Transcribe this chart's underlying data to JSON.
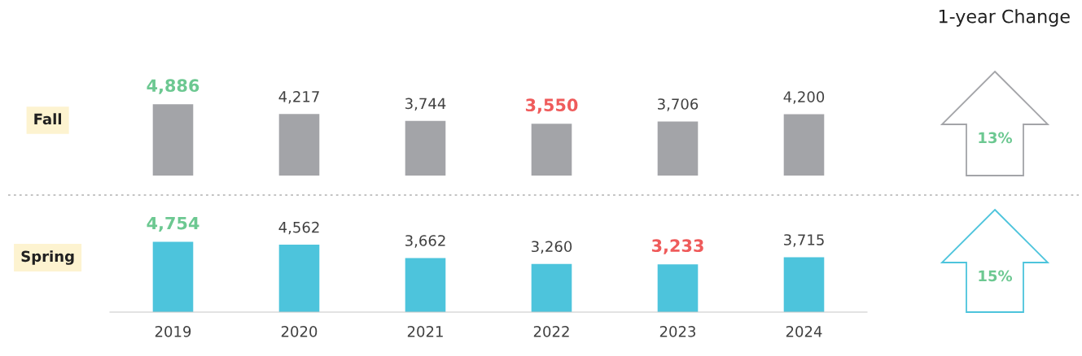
{
  "chart_data": [
    {
      "type": "bar",
      "ylabel": "Fall",
      "categories": [
        "2019",
        "2020",
        "2021",
        "2022",
        "2023",
        "2024"
      ],
      "series": [
        {
          "color": "#a3a4a8",
          "values": [
            4886,
            4217,
            3744,
            3550,
            3706,
            4200
          ],
          "value_labels": [
            "4,886",
            "4,217",
            "3,744",
            "3,550",
            "3,706",
            "4,200"
          ]
        }
      ],
      "tick_labels": false,
      "annotations": [
        "1-year Change",
        "13%"
      ]
    },
    {
      "type": "bar",
      "ylabel": "Spring",
      "categories": [
        "2019",
        "2020",
        "2021",
        "2022",
        "2023",
        "2024"
      ],
      "series": [
        {
          "color": "#4dc4dc",
          "values": [
            4754,
            4562,
            3662,
            3260,
            3233,
            3715
          ],
          "value_labels": [
            "4,754",
            "4,562",
            "3,662",
            "3,260",
            "3,233",
            "3,715"
          ]
        }
      ],
      "tick_labels": "x",
      "annotations": [
        "15%"
      ]
    }
  ]
}
